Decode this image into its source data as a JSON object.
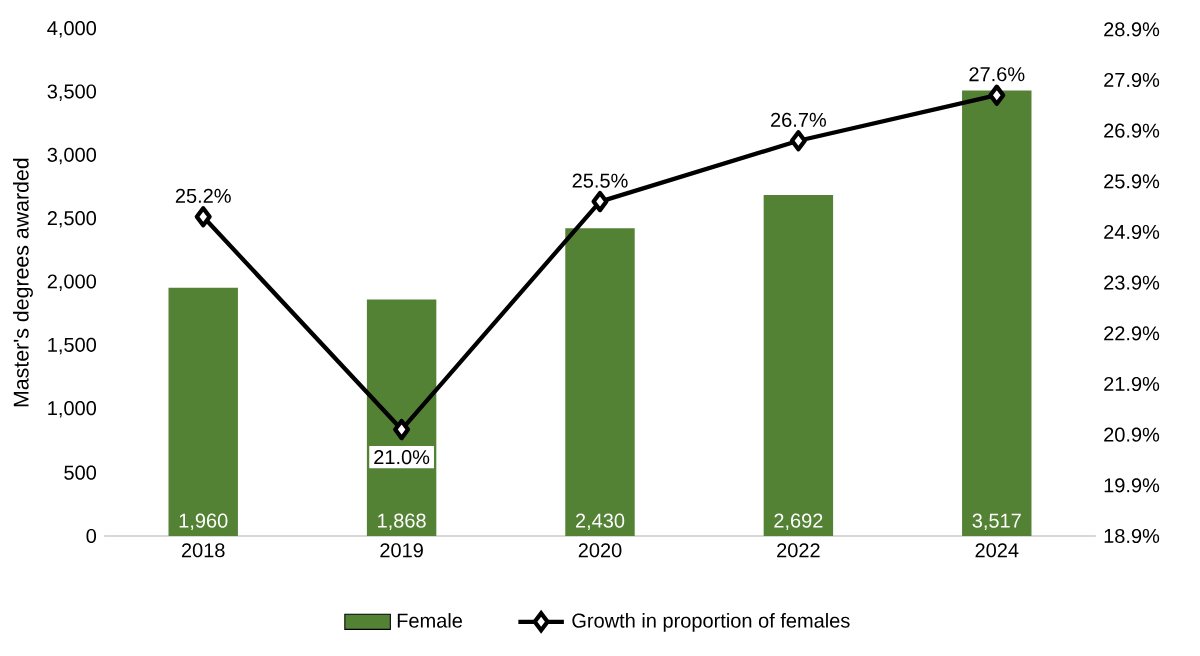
{
  "chart_data": {
    "type": "bar",
    "ylabel": "Master's degrees awarded",
    "legend": "bottom",
    "categories": [
      "2018",
      "2019",
      "2020",
      "2022",
      "2024"
    ],
    "series": [
      {
        "name": "Female",
        "color": "#548235",
        "values": [
          1960,
          1868,
          2430,
          2692,
          3517
        ],
        "value_labels": [
          "1,960",
          "1,868",
          "2,430",
          "2,692",
          "3,517"
        ]
      },
      {
        "type": "line",
        "name": "Growth in proportion of females",
        "color": "#000000",
        "axis": "y2",
        "marker": "diamond",
        "line_style": "solid",
        "values": [
          25.2,
          21.0,
          25.5,
          26.7,
          27.6
        ],
        "value_labels": [
          "25.2%",
          "21.0%",
          "25.5%",
          "26.7%",
          "27.6%"
        ]
      }
    ],
    "ylim": [
      0,
      4000
    ],
    "yticks": [
      0,
      {
        "value": 500,
        "label": "500"
      },
      {
        "value": 1000,
        "label": "1,000"
      },
      {
        "value": 1500,
        "label": "1,500"
      },
      {
        "value": 2000,
        "label": "2,000"
      },
      {
        "value": 2500,
        "label": "2,500"
      },
      {
        "value": 3000,
        "label": "3,000"
      },
      {
        "value": 3500,
        "label": "3,500"
      },
      {
        "value": 4000,
        "label": "4,000"
      }
    ],
    "y2lim": [
      18.9,
      28.9
    ],
    "y2ticks": [
      {
        "value": 18.9,
        "label": "18.9%"
      },
      {
        "value": 19.9,
        "label": "19.9%"
      },
      {
        "value": 20.9,
        "label": "20.9%"
      },
      {
        "value": 21.9,
        "label": "21.9%"
      },
      {
        "value": 22.9,
        "label": "22.9%"
      },
      {
        "value": 23.9,
        "label": "23.9%"
      },
      {
        "value": 24.9,
        "label": "24.9%"
      },
      {
        "value": 25.9,
        "label": "25.9%"
      },
      {
        "value": 26.9,
        "label": "26.9%"
      },
      {
        "value": 27.9,
        "label": "27.9%"
      },
      {
        "value": 28.9,
        "label": "28.9%"
      }
    ]
  }
}
